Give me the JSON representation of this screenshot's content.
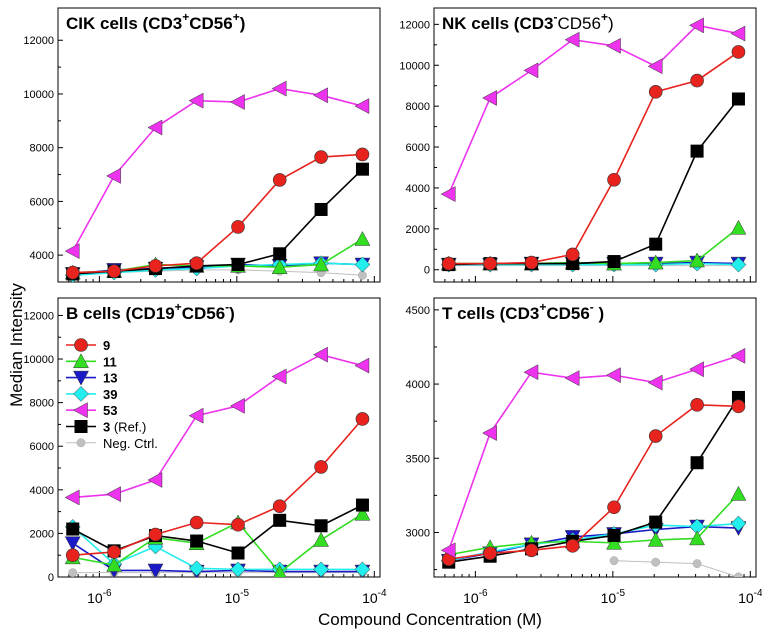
{
  "figure": {
    "ylabel": "Median Intensity",
    "xlabel": "Compound Concentration (M)"
  },
  "colors": {
    "9": "#e8231e",
    "11": "#33dd22",
    "13": "#1a1ac8",
    "39": "#22eeee",
    "53": "#ee33ee",
    "3": "#000000",
    "neg": "#c0c0c0"
  },
  "legend": [
    {
      "key": "9",
      "label": "9",
      "marker": "circle"
    },
    {
      "key": "11",
      "label": "11",
      "marker": "triangle-up"
    },
    {
      "key": "13",
      "label": "13",
      "marker": "triangle-down"
    },
    {
      "key": "39",
      "label": "39",
      "marker": "diamond"
    },
    {
      "key": "53",
      "label": "53",
      "marker": "triangle-left"
    },
    {
      "key": "3",
      "label": "3",
      "suffix": " (Ref.)",
      "marker": "square"
    },
    {
      "key": "neg",
      "label": "Neg. Ctrl.",
      "marker": "small-circle"
    }
  ],
  "chart_data": [
    {
      "type": "line",
      "title_main": "CIK cells (CD3",
      "title_sup1": "+",
      "title_mid": "CD56",
      "title_sup2": "+",
      "title_end": ")",
      "xscale": "log",
      "xlim": [
        5e-07,
        0.00011
      ],
      "ylim": [
        3000,
        13200
      ],
      "yticks": [
        4000,
        6000,
        8000,
        10000,
        12000
      ],
      "x": [
        6.4e-07,
        1.28e-06,
        2.56e-06,
        5.1e-06,
        1.02e-05,
        2.05e-05,
        4.1e-05,
        8.2e-05
      ],
      "series": [
        {
          "key": "53",
          "name": "53",
          "values": [
            4150,
            6950,
            8750,
            9750,
            9700,
            10200,
            9950,
            9550
          ]
        },
        {
          "key": "9",
          "name": "9",
          "values": [
            3350,
            3400,
            3600,
            3700,
            5050,
            6800,
            7650,
            7750
          ]
        },
        {
          "key": "3",
          "name": "3 (Ref.)",
          "values": [
            3300,
            3400,
            3500,
            3600,
            3650,
            4050,
            5700,
            7200
          ]
        },
        {
          "key": "11",
          "name": "11",
          "values": [
            3350,
            3400,
            3650,
            3600,
            3600,
            3550,
            3650,
            4600
          ]
        },
        {
          "key": "13",
          "name": "13",
          "values": [
            3300,
            3450,
            3500,
            3550,
            3650,
            3600,
            3700,
            3650
          ]
        },
        {
          "key": "39",
          "name": "39",
          "values": [
            3250,
            3350,
            3450,
            3500,
            3600,
            3650,
            3700,
            3650
          ]
        },
        {
          "key": "neg",
          "name": "Neg. Ctrl.",
          "values": [
            3250,
            3350,
            3400,
            3450,
            3450,
            3400,
            3350,
            3250
          ]
        }
      ]
    },
    {
      "type": "line",
      "title_main": "NK cells (CD3",
      "title_sup1": "-",
      "title_mid": "CD56",
      "title_sup2": "+",
      "title_end": ")",
      "xscale": "log",
      "xlim": [
        5e-07,
        0.00011
      ],
      "ylim": [
        -600,
        12800
      ],
      "yticks": [
        0,
        2000,
        4000,
        6000,
        8000,
        10000,
        12000
      ],
      "x": [
        6.4e-07,
        1.28e-06,
        2.56e-06,
        5.1e-06,
        1.02e-05,
        2.05e-05,
        4.1e-05,
        8.2e-05
      ],
      "series": [
        {
          "key": "53",
          "name": "53",
          "values": [
            3700,
            8400,
            9750,
            11250,
            10950,
            9950,
            11950,
            11550
          ]
        },
        {
          "key": "9",
          "name": "9",
          "values": [
            300,
            300,
            350,
            750,
            4400,
            8700,
            9250,
            10650
          ]
        },
        {
          "key": "3",
          "name": "3 (Ref.)",
          "values": [
            250,
            300,
            300,
            300,
            400,
            1250,
            5800,
            8350
          ]
        },
        {
          "key": "11",
          "name": "11",
          "values": [
            300,
            300,
            300,
            350,
            300,
            350,
            450,
            2050
          ]
        },
        {
          "key": "13",
          "name": "13",
          "values": [
            250,
            250,
            300,
            300,
            300,
            300,
            350,
            300
          ]
        },
        {
          "key": "39",
          "name": "39",
          "values": [
            250,
            250,
            250,
            250,
            250,
            250,
            300,
            250
          ]
        },
        {
          "key": "neg",
          "name": "Neg. Ctrl.",
          "values": [
            200,
            200,
            200,
            200,
            200,
            200,
            200,
            200
          ]
        }
      ]
    },
    {
      "type": "line",
      "title_main": "B cells (CD19",
      "title_sup1": "+",
      "title_mid": "CD56",
      "title_sup2": "-",
      "title_end": ")",
      "xscale": "log",
      "xlim": [
        5e-07,
        0.00011
      ],
      "ylim": [
        0,
        12800
      ],
      "yticks": [
        0,
        2000,
        4000,
        6000,
        8000,
        10000,
        12000
      ],
      "x": [
        6.4e-07,
        1.28e-06,
        2.56e-06,
        5.1e-06,
        1.02e-05,
        2.05e-05,
        4.1e-05,
        8.2e-05
      ],
      "series": [
        {
          "key": "53",
          "name": "53",
          "values": [
            3650,
            3800,
            4450,
            7400,
            7850,
            9200,
            10200,
            9700
          ]
        },
        {
          "key": "9",
          "name": "9",
          "values": [
            1000,
            1150,
            1950,
            2500,
            2400,
            3250,
            5050,
            7250
          ]
        },
        {
          "key": "3",
          "name": "3 (Ref.)",
          "values": [
            2200,
            1200,
            1900,
            1650,
            1100,
            2600,
            2350,
            3300
          ]
        },
        {
          "key": "11",
          "name": "11",
          "values": [
            900,
            550,
            1800,
            1550,
            2500,
            200,
            1700,
            2900
          ]
        },
        {
          "key": "13",
          "name": "13",
          "values": [
            1550,
            300,
            300,
            250,
            300,
            250,
            250,
            250
          ]
        },
        {
          "key": "39",
          "name": "39",
          "values": [
            2300,
            600,
            1400,
            400,
            350,
            350,
            350,
            350
          ]
        },
        {
          "key": "neg",
          "name": "Neg. Ctrl.",
          "values": [
            200,
            200,
            200,
            200,
            200,
            200,
            200,
            200
          ]
        }
      ]
    },
    {
      "type": "line",
      "title_main": "T cells (CD3",
      "title_sup1": "+",
      "title_mid": "CD56",
      "title_sup2": "-",
      "title_end": " )",
      "xscale": "log",
      "xlim": [
        5e-07,
        0.00011
      ],
      "ylim": [
        2700,
        4580
      ],
      "yticks": [
        3000,
        3500,
        4000,
        4500
      ],
      "x": [
        6.4e-07,
        1.28e-06,
        2.56e-06,
        5.1e-06,
        1.02e-05,
        2.05e-05,
        4.1e-05,
        8.2e-05
      ],
      "series": [
        {
          "key": "53",
          "name": "53",
          "values": [
            2880,
            3670,
            4080,
            4040,
            4060,
            4010,
            4100,
            4190
          ]
        },
        {
          "key": "9",
          "name": "9",
          "values": [
            2820,
            2860,
            2880,
            2910,
            3170,
            3650,
            3860,
            3850
          ]
        },
        {
          "key": "3",
          "name": "3 (Ref.)",
          "values": [
            2800,
            2840,
            2890,
            2940,
            2980,
            3070,
            3470,
            3910
          ]
        },
        {
          "key": "11",
          "name": "11",
          "values": [
            2850,
            2900,
            2930,
            2940,
            2930,
            2950,
            2960,
            3260
          ]
        },
        {
          "key": "13",
          "name": "13",
          "values": [
            2810,
            2860,
            2920,
            2970,
            2990,
            3020,
            3040,
            3030
          ]
        },
        {
          "key": "39",
          "name": "39",
          "values": [
            2810,
            2870,
            2920,
            2950,
            2990,
            3050,
            3040,
            3060
          ]
        },
        {
          "key": "neg",
          "name": "Neg. Ctrl.",
          "values": [
            null,
            null,
            null,
            null,
            2810,
            2800,
            2790,
            2700
          ]
        }
      ]
    }
  ],
  "xtick_labels": [
    {
      "base": "10",
      "exp": "-6"
    },
    {
      "base": "10",
      "exp": "-5"
    },
    {
      "base": "10",
      "exp": "-4"
    }
  ]
}
